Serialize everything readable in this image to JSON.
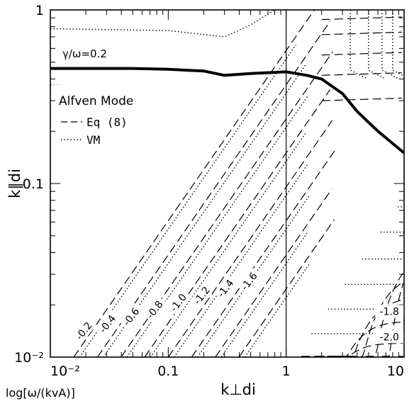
{
  "chart_data": {
    "type": "line",
    "xscale": "log",
    "yscale": "log",
    "xlim": [
      0.01,
      10
    ],
    "ylim": [
      0.01,
      1
    ],
    "xlabel": "k⊥di",
    "ylabel": "k∥di",
    "xtick_labels": [
      "10⁻²",
      "0.1",
      "1",
      "10"
    ],
    "ytick_labels": [
      "10⁻²",
      "0.1",
      "1"
    ],
    "contour_title": "log[ω/(kvA)]",
    "legend": {
      "title": "Alfven Mode",
      "entries": [
        {
          "label": "Eq (8)",
          "style": "dashed"
        },
        {
          "label": "VM",
          "style": "dotted"
        }
      ],
      "placement": "upper-left"
    },
    "vertical_line_x": 1,
    "threshold_label": "γ/ω=0.2",
    "threshold_curve": {
      "x": [
        0.01,
        0.05,
        0.1,
        0.2,
        0.3,
        0.5,
        1.0,
        1.5,
        2.0,
        3.0,
        4.0,
        6.0,
        8.0,
        10.0
      ],
      "y": [
        0.46,
        0.46,
        0.455,
        0.445,
        0.42,
        0.43,
        0.44,
        0.42,
        0.4,
        0.33,
        0.26,
        0.2,
        0.17,
        0.15
      ]
    },
    "contour_levels": [
      {
        "label": "-0.2",
        "x_at_bottom": 0.0158
      },
      {
        "label": "-0.4",
        "x_at_bottom": 0.0251
      },
      {
        "label": "-0.6",
        "x_at_bottom": 0.0398
      },
      {
        "label": "-0.8",
        "x_at_bottom": 0.0631
      },
      {
        "label": "-1.0",
        "x_at_bottom": 0.1
      },
      {
        "label": "-1.2",
        "x_at_bottom": 0.158
      },
      {
        "label": "-1.4",
        "x_at_bottom": 0.251
      },
      {
        "label": "-1.6",
        "x_at_bottom": 0.398
      }
    ],
    "right_labels": [
      {
        "label": "-1.8",
        "x": 7.5,
        "y": 0.0175
      },
      {
        "label": "-2.0",
        "x": 7.5,
        "y": 0.0125
      }
    ],
    "series": [
      {
        "name": "Eq (8)",
        "style": "dashed"
      },
      {
        "name": "VM",
        "style": "dotted"
      }
    ]
  }
}
